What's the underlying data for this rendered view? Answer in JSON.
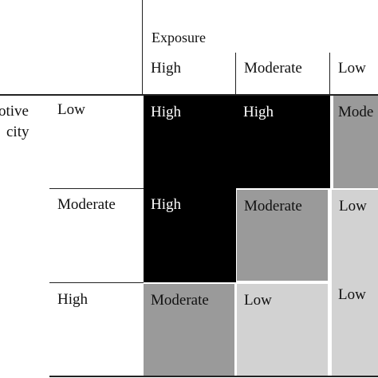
{
  "exposure_label": "Exposure",
  "adaptive_capacity_label_line1": "otive",
  "adaptive_capacity_label_line2": "city",
  "column_headers": [
    "High",
    "Moderate",
    "Low"
  ],
  "row_headers": [
    "Low",
    "Moderate",
    "High"
  ],
  "matrix": [
    [
      {
        "text": "High",
        "fill": "#000000",
        "text_color": "#ffffff"
      },
      {
        "text": "High",
        "fill": "#000000",
        "text_color": "#ffffff"
      },
      {
        "text": "Mode",
        "fill": "#9a9a9a",
        "text_color": "#111111"
      }
    ],
    [
      {
        "text": "High",
        "fill": "#000000",
        "text_color": "#ffffff"
      },
      {
        "text": "Moderate",
        "fill": "#9a9a9a",
        "text_color": "#111111"
      },
      {
        "text": "Low",
        "fill": "#d2d2d2",
        "text_color": "#111111"
      }
    ],
    [
      {
        "text": "Moderate",
        "fill": "#9a9a9a",
        "text_color": "#111111"
      },
      {
        "text": "Low",
        "fill": "#d2d2d2",
        "text_color": "#111111"
      },
      {
        "text": "Low",
        "fill": "#d2d2d2",
        "text_color": "#111111"
      }
    ]
  ]
}
